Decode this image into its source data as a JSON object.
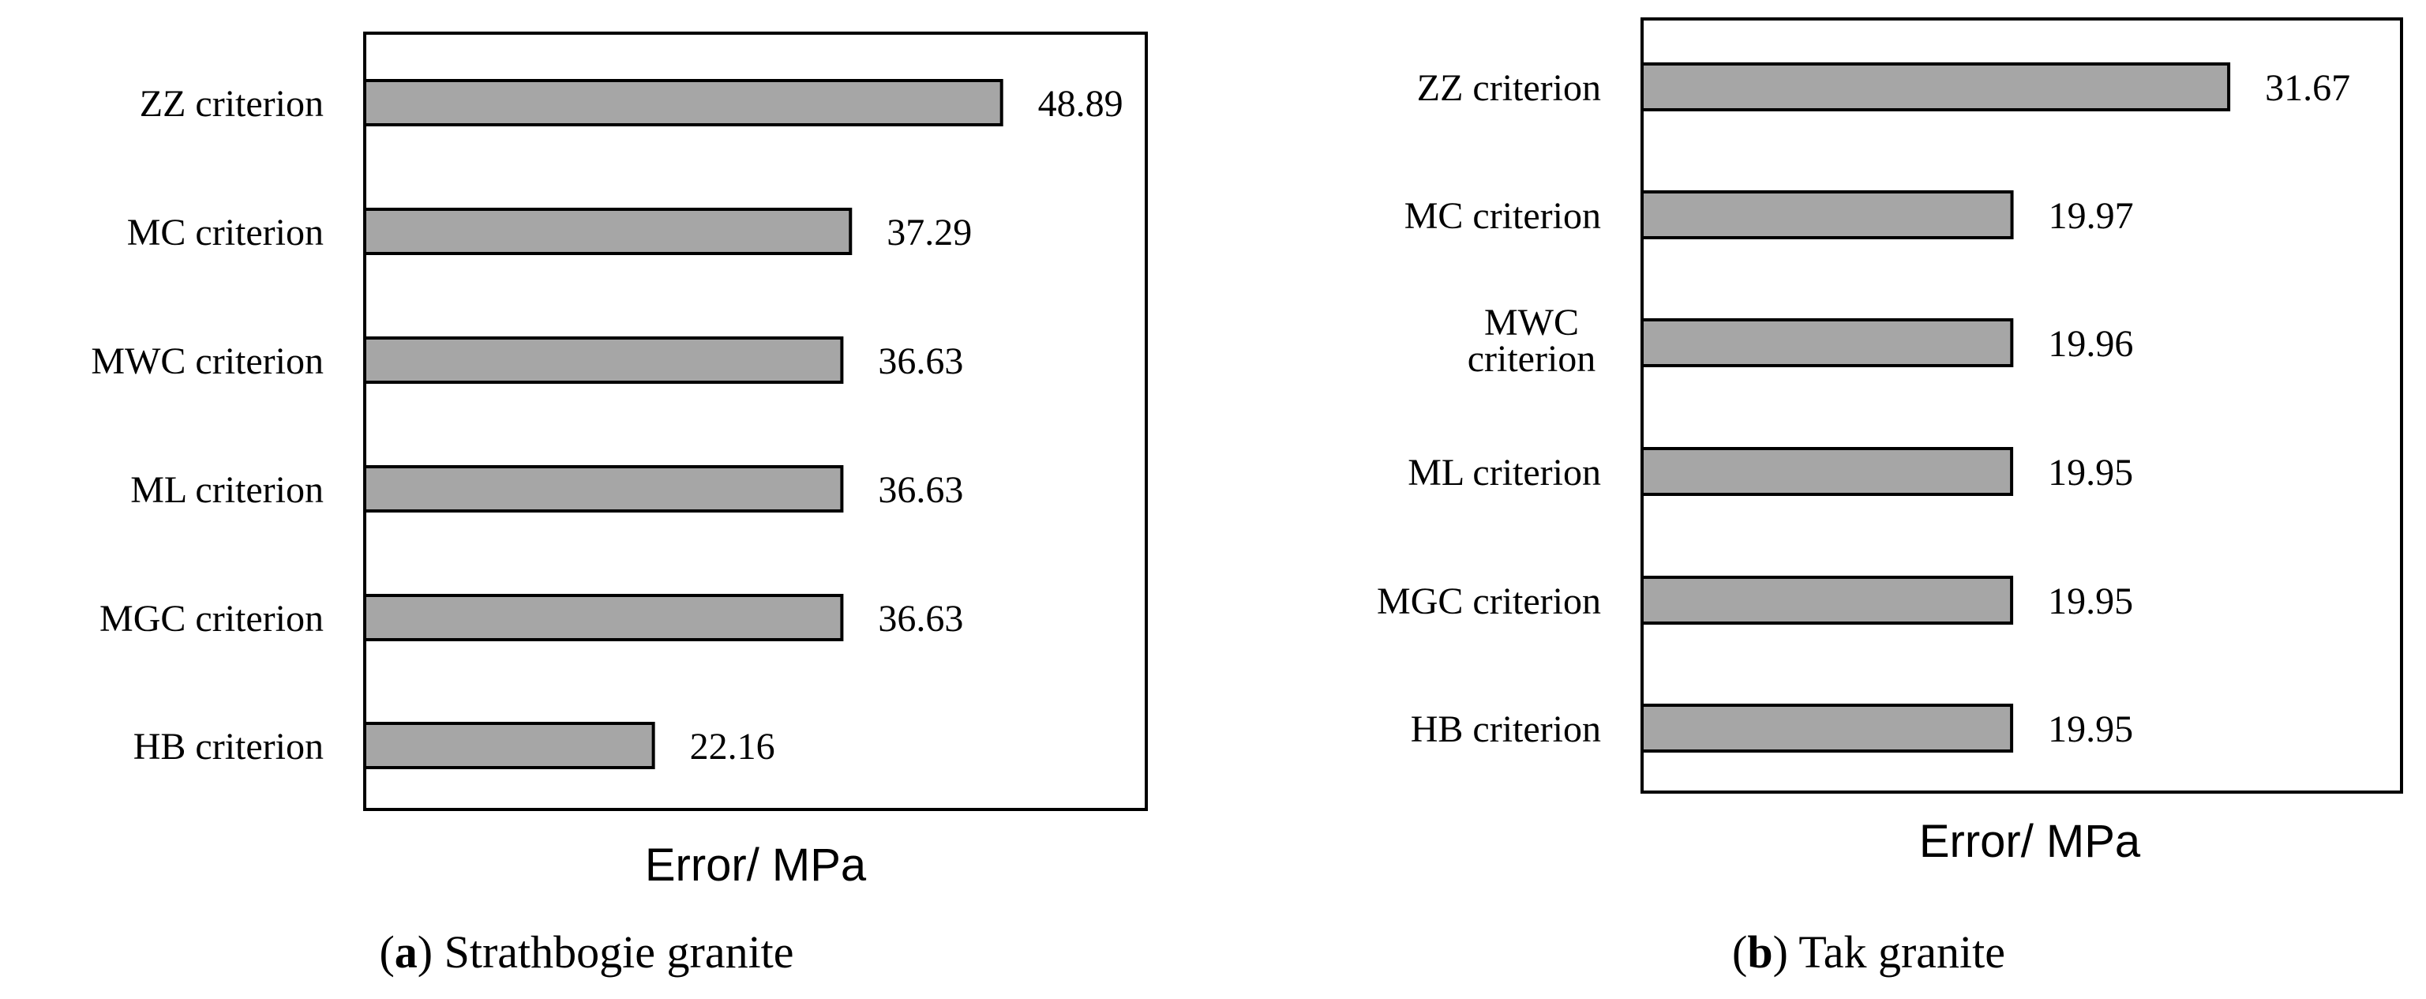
{
  "chart_data": [
    {
      "type": "bar",
      "orientation": "horizontal",
      "categories": [
        "ZZ criterion",
        "MC criterion",
        "MWC criterion",
        "ML criterion",
        "MGC criterion",
        "HB criterion"
      ],
      "values": [
        48.89,
        37.29,
        36.63,
        36.63,
        36.63,
        22.16
      ],
      "value_labels": [
        "48.89",
        "37.29",
        "36.63",
        "36.63",
        "36.63",
        "22.16"
      ],
      "xlabel": "Error/ MPa",
      "xlim": [
        0,
        60
      ],
      "bar_color": "#a6a6a6",
      "caption_letter": "a",
      "caption_text": " Strathbogie granite"
    },
    {
      "type": "bar",
      "orientation": "horizontal",
      "categories": [
        "ZZ criterion",
        "MC criterion",
        "MWC criterion",
        "ML criterion",
        "MGC criterion",
        "HB criterion"
      ],
      "values": [
        31.67,
        19.97,
        19.96,
        19.95,
        19.95,
        19.95
      ],
      "value_labels": [
        "31.67",
        "19.97",
        "19.96",
        "19.95",
        "19.95",
        "19.95"
      ],
      "xlabel": "Error/ MPa",
      "xlim": [
        0,
        41
      ],
      "bar_color": "#a6a6a6",
      "caption_letter": "b",
      "caption_text": " Tak granite"
    }
  ]
}
